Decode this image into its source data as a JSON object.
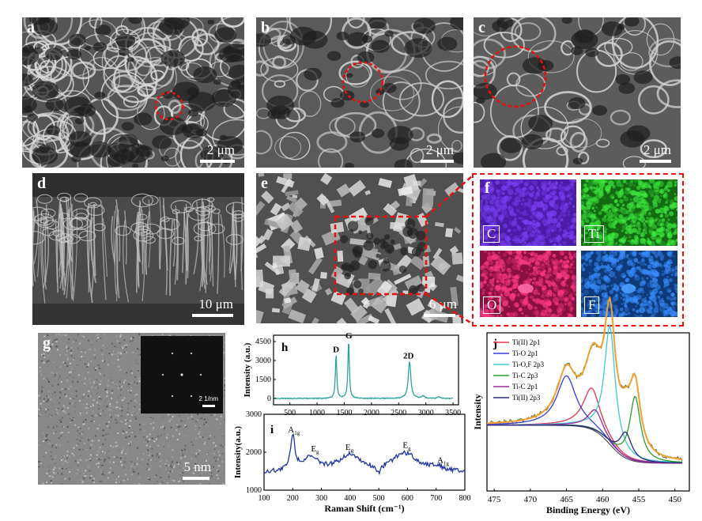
{
  "panels": {
    "a": {
      "label": "a",
      "scale": "2 μm"
    },
    "b": {
      "label": "b",
      "scale": "2 μm"
    },
    "c": {
      "label": "c",
      "scale": "2 μm"
    },
    "d": {
      "label": "d",
      "scale": "10 μm"
    },
    "e": {
      "label": "e",
      "scale": "6 μm"
    },
    "f": {
      "label": "f",
      "maps": [
        {
          "element": "C",
          "color": "#5a1fc4"
        },
        {
          "element": "Ti",
          "color": "#1fb21f"
        },
        {
          "element": "O",
          "color": "#d01a5a"
        },
        {
          "element": "F",
          "color": "#1a6ad0"
        }
      ]
    },
    "g": {
      "label": "g",
      "scale": "5 nm",
      "inset_scale": "2 1/nm"
    }
  },
  "chart_data": [
    {
      "panel": "h",
      "type": "line",
      "ylabel": "Intensity (a.u.)",
      "xlim": [
        200,
        3600
      ],
      "ylim": [
        -500,
        5000
      ],
      "xticks": [
        500,
        1000,
        1500,
        2000,
        2500,
        3000,
        3500
      ],
      "yticks": [
        0,
        1500,
        3000,
        4500
      ],
      "peaks": [
        {
          "label": "D",
          "x": 1350,
          "y": 3400
        },
        {
          "label": "G",
          "x": 1580,
          "y": 4500
        },
        {
          "label": "2D",
          "x": 2700,
          "y": 2900
        }
      ],
      "color": "#2aa39a"
    },
    {
      "panel": "i",
      "type": "line",
      "xlabel": "Raman Shift (cm⁻¹)",
      "ylabel": "Intensity(a.u.)",
      "xlim": [
        100,
        800
      ],
      "ylim": [
        1000,
        3000
      ],
      "xticks": [
        100,
        200,
        300,
        400,
        500,
        600,
        700,
        800
      ],
      "yticks": [
        1000,
        2000,
        3000
      ],
      "peak_labels": [
        {
          "label": "A",
          "sub": "1g",
          "x": 200,
          "y": 2350
        },
        {
          "label": "E",
          "sub": "g",
          "x": 280,
          "y": 1850
        },
        {
          "label": "E",
          "sub": "g",
          "x": 400,
          "y": 1900
        },
        {
          "label": "E",
          "sub": "g",
          "x": 600,
          "y": 1950
        },
        {
          "label": "A",
          "sub": "1g",
          "x": 720,
          "y": 1550
        }
      ],
      "color": "#2233aa"
    },
    {
      "panel": "j",
      "type": "line",
      "xlabel": "Binding Energy (eV)",
      "ylabel": "Intensity",
      "xlim": [
        476,
        448
      ],
      "xticks": [
        475,
        470,
        465,
        460,
        455,
        450
      ],
      "series": [
        {
          "name": "Ti(II) 2p1",
          "color": "#e8334a",
          "center": 461.5,
          "height": 0.35,
          "width": 1.4
        },
        {
          "name": "Ti-O 2p1",
          "color": "#3a3ad8",
          "center": 465.0,
          "height": 0.42,
          "width": 1.6
        },
        {
          "name": "Ti-O,F 2p3",
          "color": "#3ccad4",
          "center": 459.0,
          "height": 1.0,
          "width": 0.9
        },
        {
          "name": "Ti-C 2p3",
          "color": "#2aa02a",
          "center": 455.5,
          "height": 0.55,
          "width": 0.9
        },
        {
          "name": "Ti-C 2p1",
          "color": "#9a2a9a",
          "center": 461.0,
          "height": 0.18,
          "width": 1.2
        },
        {
          "name": "Ti(II) 2p3",
          "color": "#2a2a80",
          "center": 456.8,
          "height": 0.22,
          "width": 1.0
        }
      ]
    }
  ]
}
